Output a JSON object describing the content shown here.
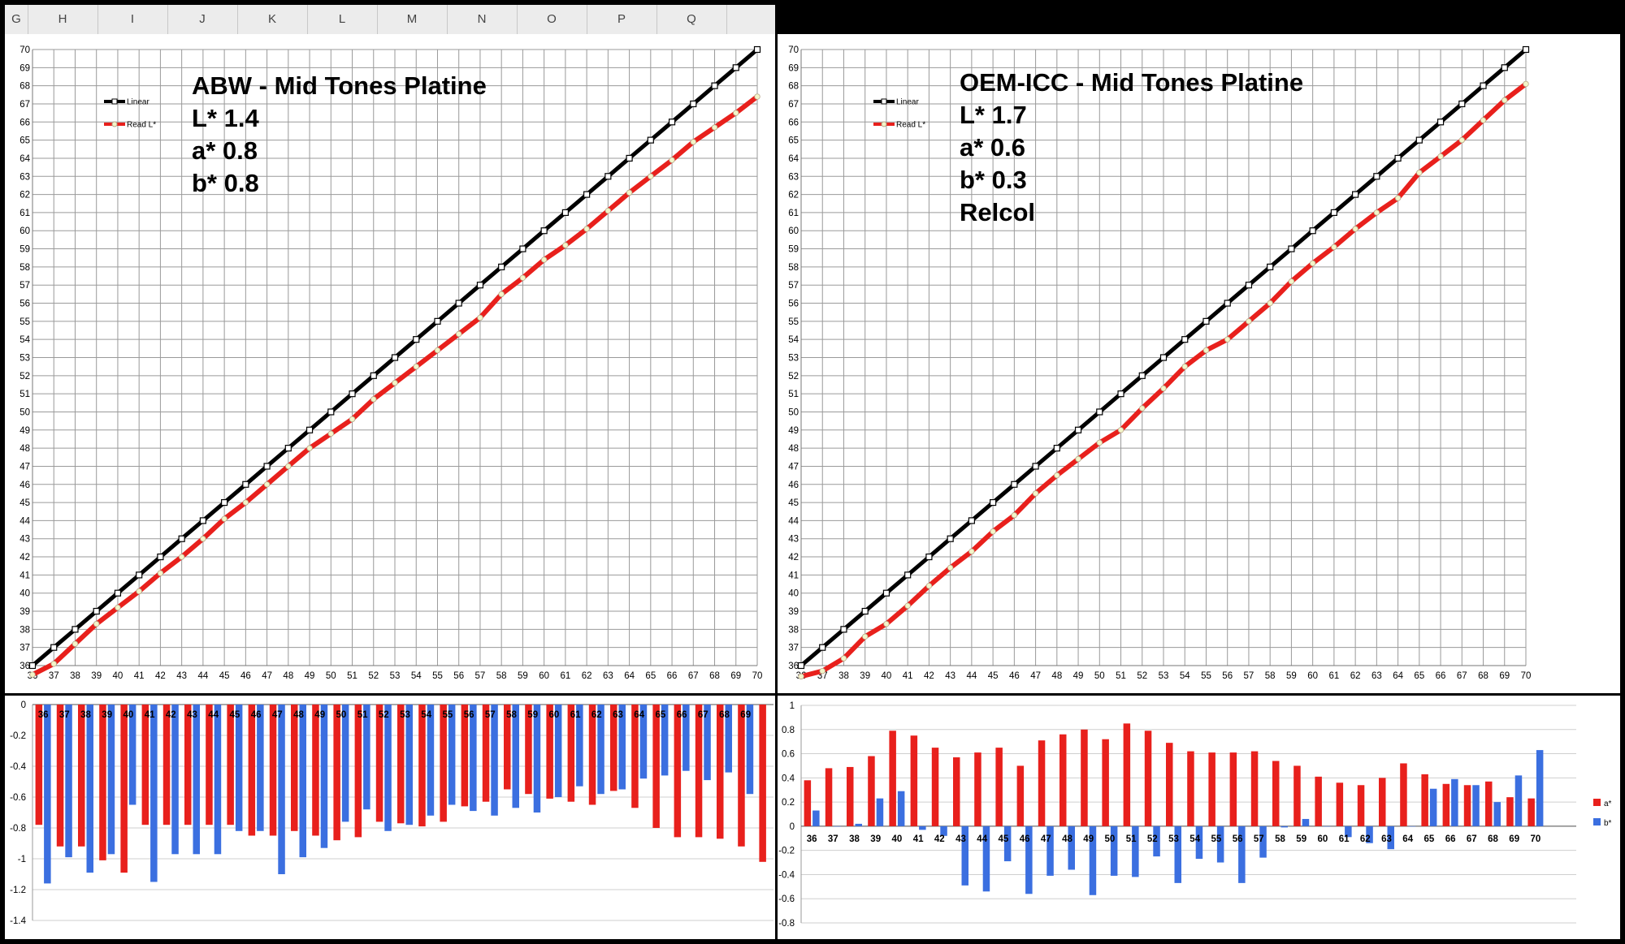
{
  "sheet": {
    "columns": [
      "G",
      "H",
      "I",
      "J",
      "K",
      "L",
      "M",
      "N",
      "O",
      "P",
      "Q"
    ]
  },
  "chart_data": [
    {
      "type": "line",
      "ylim": [
        36,
        70
      ],
      "x": [
        36,
        37,
        38,
        39,
        40,
        41,
        42,
        43,
        44,
        45,
        46,
        47,
        48,
        49,
        50,
        51,
        52,
        53,
        54,
        55,
        56,
        57,
        58,
        59,
        60,
        61,
        62,
        63,
        64,
        65,
        66,
        67,
        68,
        69,
        70
      ],
      "series": [
        {
          "name": "Linear",
          "color": "#000000",
          "values": [
            36,
            37,
            38,
            39,
            40,
            41,
            42,
            43,
            44,
            45,
            46,
            47,
            48,
            49,
            50,
            51,
            52,
            53,
            54,
            55,
            56,
            57,
            58,
            59,
            60,
            61,
            62,
            63,
            64,
            65,
            66,
            67,
            68,
            69,
            70
          ]
        },
        {
          "name": "Read L*",
          "color": "#e8201c",
          "values": [
            35.5,
            36.1,
            37.2,
            38.3,
            39.2,
            40.1,
            41.1,
            42.0,
            43.0,
            44.1,
            45.0,
            46.0,
            47.0,
            48.0,
            48.8,
            49.6,
            50.7,
            51.6,
            52.5,
            53.4,
            54.3,
            55.2,
            56.5,
            57.4,
            58.4,
            59.2,
            60.1,
            61.1,
            62.1,
            63.0,
            63.9,
            64.9,
            65.7,
            66.5,
            67.4
          ]
        }
      ],
      "annotation": [
        "ABW - Mid Tones Platine",
        "L* 1.4",
        "a* 0.8",
        "b* 0.8"
      ]
    },
    {
      "type": "line",
      "ylim": [
        36,
        70
      ],
      "x": [
        36,
        37,
        38,
        39,
        40,
        41,
        42,
        43,
        44,
        45,
        46,
        47,
        48,
        49,
        50,
        51,
        52,
        53,
        54,
        55,
        56,
        57,
        58,
        59,
        60,
        61,
        62,
        63,
        64,
        65,
        66,
        67,
        68,
        69,
        70
      ],
      "series": [
        {
          "name": "Linear",
          "color": "#000000",
          "values": [
            36,
            37,
            38,
            39,
            40,
            41,
            42,
            43,
            44,
            45,
            46,
            47,
            48,
            49,
            50,
            51,
            52,
            53,
            54,
            55,
            56,
            57,
            58,
            59,
            60,
            61,
            62,
            63,
            64,
            65,
            66,
            67,
            68,
            69,
            70
          ]
        },
        {
          "name": "Read L*",
          "color": "#e8201c",
          "values": [
            35.4,
            35.7,
            36.4,
            37.6,
            38.3,
            39.3,
            40.4,
            41.4,
            42.3,
            43.4,
            44.3,
            45.5,
            46.5,
            47.4,
            48.3,
            49.0,
            50.2,
            51.3,
            52.5,
            53.4,
            54.0,
            55.0,
            56.0,
            57.2,
            58.2,
            59.1,
            60.1,
            61.0,
            61.8,
            63.2,
            64.1,
            65.0,
            66.1,
            67.2,
            68.1
          ]
        }
      ],
      "annotation": [
        "OEM-ICC - Mid Tones Platine",
        "L* 1.7",
        "a* 0.6",
        "b* 0.3",
        "Relcol"
      ]
    },
    {
      "type": "bar",
      "ylim": [
        -1.4,
        0
      ],
      "yticks": [
        0,
        -0.2,
        -0.4,
        -0.6,
        -0.8,
        -1,
        -1.2,
        -1.4
      ],
      "categories": [
        "36",
        "37",
        "38",
        "39",
        "40",
        "41",
        "42",
        "43",
        "44",
        "45",
        "46",
        "47",
        "48",
        "49",
        "50",
        "51",
        "52",
        "53",
        "54",
        "55",
        "56",
        "57",
        "58",
        "59",
        "60",
        "61",
        "62",
        "63",
        "64",
        "65",
        "66",
        "67",
        "68",
        "69"
      ],
      "series": [
        {
          "name": "a*",
          "color": "#e8201c",
          "values": [
            -0.78,
            -0.92,
            -0.92,
            -1.01,
            -1.09,
            -0.78,
            -0.78,
            -0.78,
            -0.78,
            -0.78,
            -0.85,
            -0.85,
            -0.82,
            -0.85,
            -0.88,
            -0.86,
            -0.76,
            -0.77,
            -0.79,
            -0.76,
            -0.66,
            -0.63,
            -0.55,
            -0.58,
            -0.61,
            -0.63,
            -0.65,
            -0.56,
            -0.67,
            -0.8,
            -0.86,
            -0.86,
            -0.87,
            -0.92
          ]
        },
        {
          "name": "b*",
          "color": "#3b6fe0",
          "values": [
            -1.16,
            -0.99,
            -1.09,
            -0.97,
            -0.65,
            -1.15,
            -0.97,
            -0.97,
            -0.97,
            -0.82,
            -0.82,
            -1.1,
            -0.99,
            -0.93,
            -0.76,
            -0.68,
            -0.82,
            -0.78,
            -0.72,
            -0.65,
            -0.69,
            -0.72,
            -0.67,
            -0.7,
            -0.6,
            -0.53,
            -0.58,
            -0.55,
            -0.48,
            -0.46,
            -0.43,
            -0.49,
            -0.44,
            -0.58
          ]
        }
      ],
      "trailing_value": -1.02
    },
    {
      "type": "bar",
      "ylim": [
        -0.8,
        1
      ],
      "yticks": [
        1,
        0.8,
        0.6,
        0.4,
        0.2,
        0,
        -0.2,
        -0.4,
        -0.6,
        -0.8
      ],
      "categories": [
        "36",
        "37",
        "38",
        "39",
        "40",
        "41",
        "42",
        "43",
        "44",
        "45",
        "46",
        "47",
        "48",
        "49",
        "50",
        "51",
        "52",
        "53",
        "54",
        "55",
        "56",
        "57",
        "58",
        "59",
        "60",
        "61",
        "62",
        "63",
        "64",
        "65",
        "66",
        "67",
        "68",
        "69",
        "70"
      ],
      "series": [
        {
          "name": "a*",
          "color": "#e8201c",
          "values": [
            0.38,
            0.48,
            0.49,
            0.58,
            0.79,
            0.75,
            0.65,
            0.57,
            0.61,
            0.65,
            0.5,
            0.71,
            0.76,
            0.8,
            0.72,
            0.85,
            0.79,
            0.69,
            0.62,
            0.61,
            0.61,
            0.62,
            0.54,
            0.5,
            0.41,
            0.36,
            0.34,
            0.4,
            0.52,
            0.43,
            0.35,
            0.34,
            0.37,
            0.24,
            0.23
          ]
        },
        {
          "name": "b*",
          "color": "#3b6fe0",
          "values": [
            0.13,
            0.0,
            0.02,
            0.23,
            0.29,
            -0.03,
            -0.08,
            -0.49,
            -0.54,
            -0.29,
            -0.56,
            -0.41,
            -0.36,
            -0.57,
            -0.41,
            -0.42,
            -0.25,
            -0.47,
            -0.27,
            -0.3,
            -0.47,
            -0.26,
            -0.01,
            0.06,
            0.0,
            -0.09,
            -0.14,
            -0.19,
            0.0,
            0.31,
            0.39,
            0.34,
            0.2,
            0.42,
            0.63
          ]
        }
      ]
    }
  ]
}
